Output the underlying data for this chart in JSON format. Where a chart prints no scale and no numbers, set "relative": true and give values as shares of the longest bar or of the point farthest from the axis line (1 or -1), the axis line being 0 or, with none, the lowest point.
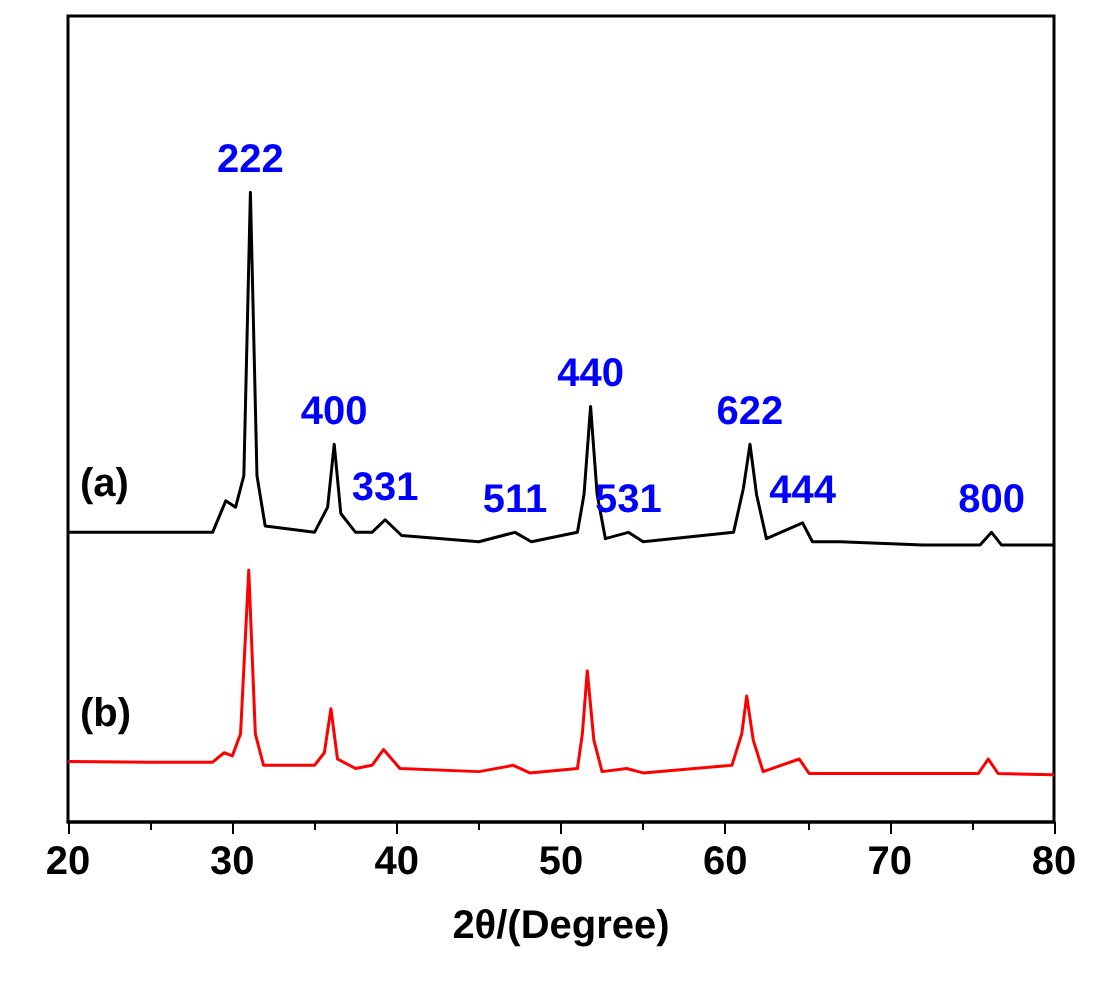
{
  "chart_data": {
    "type": "line",
    "relative": true,
    "xlabel": "2θ/(Degree)",
    "xlim": [
      20,
      80
    ],
    "xticks": [
      20,
      30,
      40,
      50,
      60,
      70,
      80
    ],
    "grid": false,
    "legend": false,
    "marker": "none",
    "line_style": "solid",
    "series": [
      {
        "name": "(a)",
        "color": "#000000",
        "x": [
          20,
          25,
          28.8,
          29.6,
          30.2,
          30.7,
          31.1,
          31.5,
          32,
          35,
          35.8,
          36.2,
          36.6,
          37.5,
          38.5,
          39.3,
          40.3,
          45,
          47.2,
          48.2,
          51,
          51.4,
          51.8,
          52.2,
          52.7,
          54.1,
          55,
          60.5,
          61.1,
          61.5,
          61.9,
          62.5,
          64.7,
          65.3,
          67,
          72,
          75.5,
          76.2,
          76.8,
          80
        ],
        "values": [
          0.46,
          0.46,
          0.46,
          0.51,
          0.5,
          0.55,
          1.0,
          0.55,
          0.47,
          0.46,
          0.5,
          0.6,
          0.49,
          0.46,
          0.46,
          0.48,
          0.455,
          0.445,
          0.46,
          0.445,
          0.46,
          0.52,
          0.66,
          0.52,
          0.45,
          0.46,
          0.445,
          0.46,
          0.53,
          0.6,
          0.52,
          0.45,
          0.475,
          0.445,
          0.445,
          0.44,
          0.44,
          0.46,
          0.44,
          0.44
        ]
      },
      {
        "name": "(b)",
        "color": "#ff0000",
        "x": [
          20,
          25,
          28.8,
          29.5,
          30,
          30.5,
          31,
          31.4,
          31.9,
          35,
          35.6,
          36,
          36.4,
          37.5,
          38.5,
          39.2,
          40.2,
          45,
          47.1,
          48.1,
          51,
          51.3,
          51.6,
          52,
          52.5,
          54,
          55,
          60.4,
          61,
          61.3,
          61.7,
          62.3,
          64.5,
          65.1,
          67,
          72,
          75.4,
          76,
          76.6,
          80
        ],
        "values": [
          0.096,
          0.095,
          0.095,
          0.11,
          0.105,
          0.14,
          0.4,
          0.14,
          0.09,
          0.09,
          0.11,
          0.18,
          0.1,
          0.085,
          0.09,
          0.115,
          0.085,
          0.08,
          0.09,
          0.078,
          0.085,
          0.14,
          0.24,
          0.13,
          0.08,
          0.085,
          0.078,
          0.09,
          0.14,
          0.2,
          0.13,
          0.08,
          0.1,
          0.077,
          0.077,
          0.077,
          0.077,
          0.1,
          0.077,
          0.075
        ]
      }
    ],
    "annotations": [
      {
        "text": "222",
        "x": 31.1,
        "y": 1.0
      },
      {
        "text": "400",
        "x": 36.2,
        "y": 0.6
      },
      {
        "text": "331",
        "x": 39.3,
        "y": 0.48
      },
      {
        "text": "511",
        "x": 47.2,
        "y": 0.46
      },
      {
        "text": "440",
        "x": 51.8,
        "y": 0.66
      },
      {
        "text": "531",
        "x": 54.1,
        "y": 0.46
      },
      {
        "text": "622",
        "x": 61.5,
        "y": 0.6
      },
      {
        "text": "444",
        "x": 64.7,
        "y": 0.475
      },
      {
        "text": "800",
        "x": 76.2,
        "y": 0.46
      }
    ]
  }
}
